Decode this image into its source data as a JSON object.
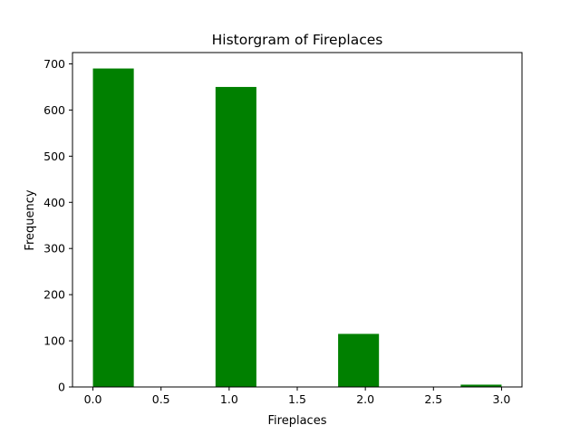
{
  "chart_data": {
    "type": "bar",
    "title": "Historgram of Fireplaces",
    "xlabel": "Fireplaces",
    "ylabel": "Frequency",
    "bins": [
      {
        "start": 0.0,
        "end": 0.3,
        "value": 690
      },
      {
        "start": 0.3,
        "end": 0.6,
        "value": 0
      },
      {
        "start": 0.6,
        "end": 0.9,
        "value": 0
      },
      {
        "start": 0.9,
        "end": 1.2,
        "value": 650
      },
      {
        "start": 1.2,
        "end": 1.5,
        "value": 0
      },
      {
        "start": 1.5,
        "end": 1.8,
        "value": 0
      },
      {
        "start": 1.8,
        "end": 2.1,
        "value": 115
      },
      {
        "start": 2.1,
        "end": 2.4,
        "value": 0
      },
      {
        "start": 2.4,
        "end": 2.7,
        "value": 0
      },
      {
        "start": 2.7,
        "end": 3.0,
        "value": 5
      }
    ],
    "xlim": [
      -0.15,
      3.15
    ],
    "ylim": [
      0,
      724.5
    ],
    "xticks": [
      "0.0",
      "0.5",
      "1.0",
      "1.5",
      "2.0",
      "2.5",
      "3.0"
    ],
    "yticks": [
      "0",
      "100",
      "200",
      "300",
      "400",
      "500",
      "600",
      "700"
    ],
    "bar_color": "#008000",
    "grid": false,
    "legend": "none"
  }
}
